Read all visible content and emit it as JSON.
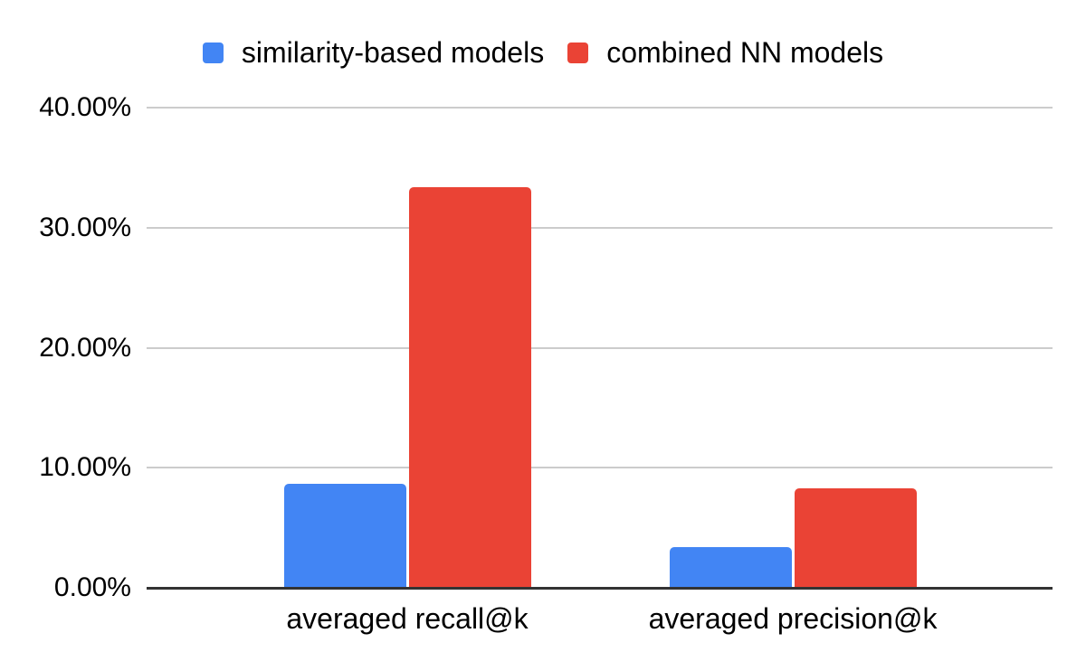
{
  "legend": {
    "items": [
      {
        "label": "similarity-based models",
        "color": "#4285F4"
      },
      {
        "label": "combined NN models",
        "color": "#EA4335"
      }
    ]
  },
  "chart_data": {
    "type": "bar",
    "title": "",
    "categories": [
      "averaged recall@k",
      "averaged precision@k"
    ],
    "series": [
      {
        "name": "similarity-based models",
        "color": "#4285F4",
        "values": [
          8.7,
          3.4
        ]
      },
      {
        "name": "combined NN models",
        "color": "#EA4335",
        "values": [
          33.4,
          8.3
        ]
      }
    ],
    "value_unit": "percent",
    "ylim": [
      0,
      40
    ],
    "ytick_labels": [
      "40.00%",
      "30.00%",
      "20.00%",
      "10.00%",
      "0.00%"
    ],
    "grid": true,
    "legend_position": "top",
    "colors": {
      "gridline": "#cccccc",
      "axis": "#333333",
      "text": "#000000",
      "background": "#ffffff"
    }
  }
}
